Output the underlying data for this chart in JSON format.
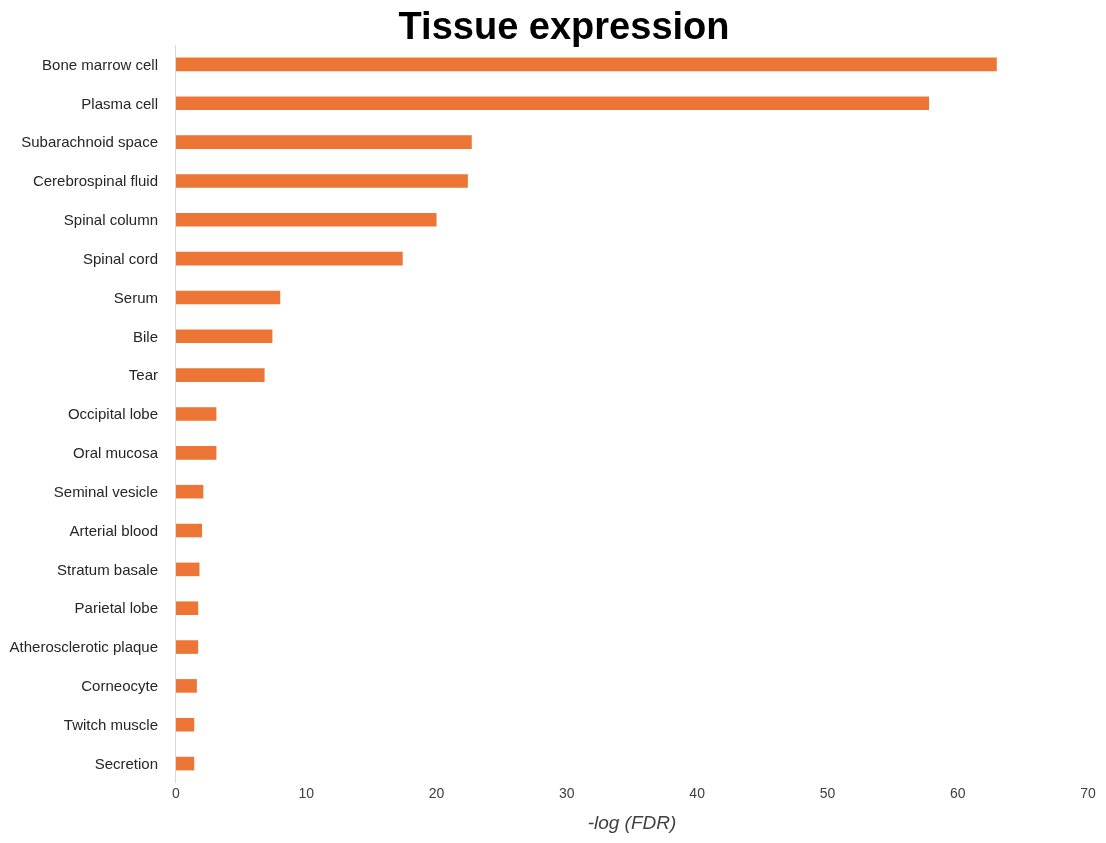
{
  "chart_data": {
    "type": "bar",
    "orientation": "horizontal",
    "title": "Tissue expression",
    "xlabel": "-log (FDR)",
    "categories": [
      "Bone marrow cell",
      "Plasma cell",
      "Subarachnoid space",
      "Cerebrospinal fluid",
      "Spinal column",
      "Spinal cord",
      "Serum",
      "Bile",
      "Tear",
      "Occipital lobe",
      "Oral mucosa",
      "Seminal vesicle",
      "Arterial blood",
      "Stratum basale",
      "Parietal lobe",
      "Atherosclerotic plaque",
      "Corneocyte",
      "Twitch muscle",
      "Secretion"
    ],
    "values": [
      63.0,
      57.8,
      22.7,
      22.4,
      20.0,
      17.4,
      8.0,
      7.4,
      6.8,
      3.1,
      3.1,
      2.1,
      2.0,
      1.8,
      1.7,
      1.7,
      1.6,
      1.4,
      1.4
    ],
    "color": "#ed7535",
    "xlim": [
      0,
      70
    ],
    "xticks": [
      0,
      10,
      20,
      30,
      40,
      50,
      60,
      70
    ]
  }
}
